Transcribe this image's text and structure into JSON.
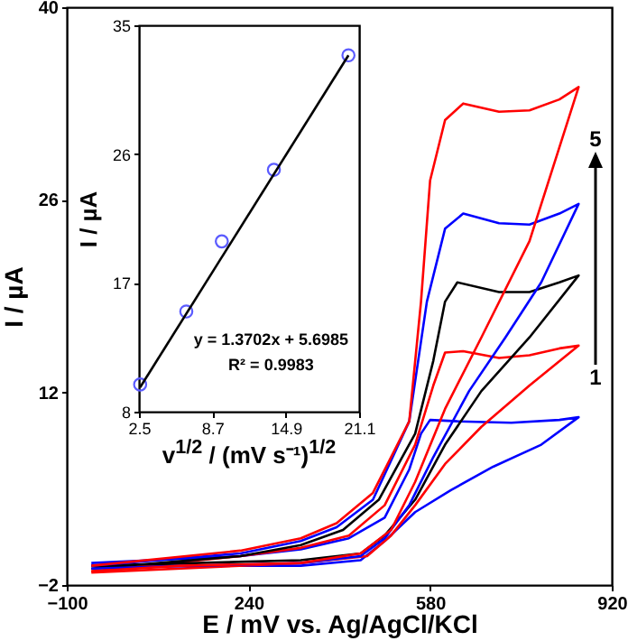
{
  "chart_data": [
    {
      "type": "line",
      "xlabel": "E / mV vs. Ag/AgCl/KCl",
      "ylabel": "I / µA",
      "xlim": [
        -100,
        920
      ],
      "ylim": [
        -2,
        40
      ],
      "xticks": [
        -100,
        240,
        580,
        920
      ],
      "yticks": [
        -2,
        12,
        26,
        40
      ],
      "grid": false,
      "legend": false,
      "marker": "none",
      "line_style": "solid",
      "annotations": [
        "5",
        "1"
      ],
      "series": [
        {
          "color": "#0000ff",
          "x": [
            -54,
            225,
            338,
            428,
            495,
            541,
            563,
            580,
            631,
            732,
            822,
            858,
            788,
            698,
            619,
            552,
            495,
            450,
            338,
            -54
          ],
          "values": [
            -0.4,
            0.1,
            0.6,
            1.4,
            2.9,
            6.4,
            9.0,
            10.0,
            9.9,
            9.8,
            10.0,
            10.2,
            8.2,
            6.6,
            4.9,
            3.3,
            1.2,
            -0.2,
            -0.6,
            -0.6
          ]
        },
        {
          "color": "#ff0000",
          "x": [
            -54,
            225,
            338,
            428,
            495,
            552,
            586,
            608,
            642,
            709,
            766,
            822,
            858,
            766,
            676,
            608,
            552,
            507,
            462,
            338,
            -54
          ],
          "values": [
            -1.0,
            0.1,
            0.7,
            1.6,
            3.8,
            8.2,
            12.5,
            14.9,
            15.0,
            14.5,
            14.7,
            15.2,
            15.4,
            12.5,
            9.5,
            6.8,
            3.8,
            1.6,
            0.1,
            -0.4,
            -1.1
          ]
        },
        {
          "color": "#000000",
          "x": [
            -54,
            225,
            338,
            417,
            484,
            552,
            586,
            608,
            631,
            709,
            766,
            822,
            858,
            766,
            676,
            608,
            552,
            495,
            450,
            338,
            -54
          ],
          "values": [
            -0.8,
            0.1,
            0.9,
            2.0,
            4.2,
            9.0,
            14.3,
            18.6,
            20.0,
            19.3,
            19.3,
            20.0,
            20.5,
            16.0,
            12.1,
            8.2,
            4.2,
            1.6,
            0.3,
            -0.2,
            -0.6
          ]
        },
        {
          "color": "#0000ff",
          "x": [
            -54,
            225,
            338,
            405,
            473,
            541,
            574,
            608,
            642,
            709,
            766,
            822,
            858,
            788,
            721,
            653,
            586,
            541,
            495,
            450,
            338,
            -54
          ],
          "values": [
            -0.6,
            0.3,
            1.2,
            2.2,
            4.2,
            9.9,
            18.6,
            23.9,
            25.0,
            24.3,
            24.2,
            25.0,
            25.7,
            20.0,
            16.0,
            12.1,
            7.3,
            3.8,
            1.4,
            0.1,
            -0.4,
            -0.8
          ]
        },
        {
          "color": "#ff0000",
          "x": [
            -54,
            225,
            338,
            405,
            473,
            541,
            563,
            580,
            608,
            642,
            709,
            766,
            822,
            858,
            766,
            676,
            608,
            552,
            507,
            450,
            338,
            113,
            -54
          ],
          "values": [
            -0.6,
            0.5,
            1.4,
            2.5,
            4.7,
            9.9,
            18.6,
            27.4,
            31.8,
            33.0,
            32.4,
            32.5,
            33.3,
            34.2,
            23.0,
            16.0,
            10.8,
            5.5,
            2.0,
            0.3,
            -0.4,
            -0.6,
            -1.0
          ]
        }
      ]
    },
    {
      "type": "scatter",
      "xlabel": "v$^{1/2}$ / (mV s⁻¹)$^{1/2}$",
      "ylabel": "I / µA",
      "xlim": [
        2.5,
        21.1
      ],
      "ylim": [
        8,
        35
      ],
      "xticks": [
        {
          "value": 2.5,
          "label": "2.5"
        },
        {
          "value": 8.7,
          "label": "8.7"
        },
        {
          "value": 14.9,
          "label": "14.9"
        },
        {
          "value": 21.1,
          "label": "21.1"
        }
      ],
      "yticks": [
        8,
        17,
        26,
        35
      ],
      "grid": false,
      "legend": false,
      "annotations": [
        "y = 1.3702x + 5.6985",
        "R² = 0.9983"
      ],
      "series": [
        {
          "marker": "circle",
          "color": "#5b5bff",
          "x": [
            2.6,
            6.5,
            9.5,
            13.9,
            20.2
          ],
          "values": [
            9.9,
            15.0,
            19.9,
            24.9,
            32.9
          ]
        },
        {
          "type": "line",
          "marker": "none",
          "color": "#000000",
          "x": [
            2.6,
            20.2
          ],
          "values": [
            9.7,
            32.9
          ]
        }
      ]
    }
  ]
}
